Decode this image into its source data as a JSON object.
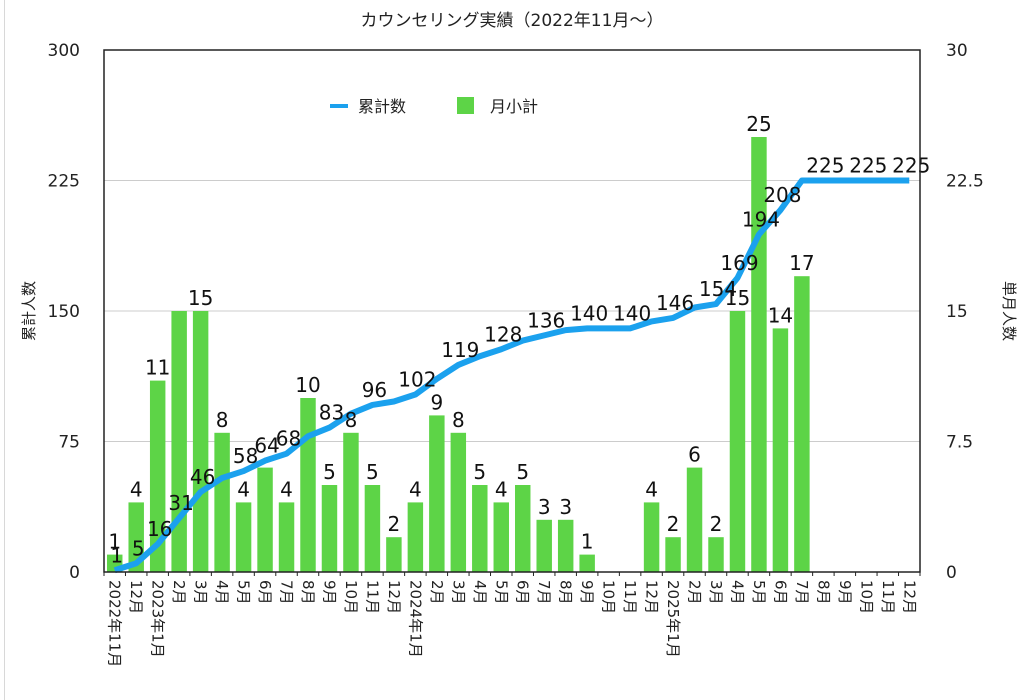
{
  "chart_data": {
    "type": "bar",
    "title": "カウンセリング実績（2022年11月〜）",
    "ylabel": "累計人数",
    "y2label": "単月人数",
    "ylim": [
      0,
      300
    ],
    "y2lim": [
      0,
      30
    ],
    "yticks": [
      "0",
      "75",
      "150",
      "225",
      "300"
    ],
    "y2ticks": [
      "0",
      "7.5",
      "15",
      "22.5",
      "30"
    ],
    "grid": true,
    "legend_position": "top-left-inside",
    "categories": [
      "2022年11月",
      "12月",
      "2023年1月",
      "2月",
      "3月",
      "4月",
      "5月",
      "6月",
      "7月",
      "8月",
      "9月",
      "10月",
      "11月",
      "12月",
      "2024年1月",
      "2月",
      "3月",
      "4月",
      "5月",
      "6月",
      "7月",
      "8月",
      "9月",
      "10月",
      "11月",
      "12月",
      "2025年1月",
      "2月",
      "3月",
      "4月",
      "5月",
      "6月",
      "7月",
      "8月",
      "9月",
      "10月",
      "11月",
      "12月"
    ],
    "series": [
      {
        "name": "月小計",
        "type": "bar",
        "axis": "right",
        "color": "#5dd447",
        "values": [
          1,
          4,
          11,
          15,
          15,
          8,
          4,
          6,
          4,
          10,
          5,
          8,
          5,
          2,
          4,
          9,
          8,
          5,
          4,
          5,
          3,
          3,
          1,
          null,
          null,
          4,
          2,
          6,
          2,
          15,
          25,
          14,
          17,
          null,
          null,
          null,
          null,
          null
        ],
        "labels_shown": [
          true,
          true,
          true,
          false,
          true,
          true,
          true,
          false,
          true,
          true,
          true,
          true,
          true,
          true,
          true,
          true,
          true,
          true,
          true,
          true,
          true,
          true,
          true,
          false,
          false,
          true,
          true,
          true,
          true,
          true,
          true,
          true,
          true,
          false,
          false,
          false,
          false,
          false
        ]
      },
      {
        "name": "累計数",
        "type": "line",
        "axis": "left",
        "color": "#1ba1ee",
        "values": [
          1,
          5,
          16,
          31,
          46,
          54,
          58,
          64,
          68,
          78,
          83,
          91,
          96,
          98,
          102,
          111,
          119,
          124,
          128,
          133,
          136,
          139,
          140,
          140,
          140,
          144,
          146,
          152,
          154,
          169,
          194,
          208,
          225,
          225,
          225,
          225,
          225,
          225
        ],
        "labels_shown": [
          true,
          true,
          true,
          true,
          true,
          false,
          true,
          true,
          true,
          false,
          true,
          false,
          true,
          false,
          true,
          false,
          true,
          false,
          true,
          false,
          true,
          false,
          true,
          false,
          true,
          false,
          true,
          false,
          true,
          true,
          true,
          true,
          false,
          true,
          false,
          true,
          false,
          true
        ]
      }
    ]
  }
}
